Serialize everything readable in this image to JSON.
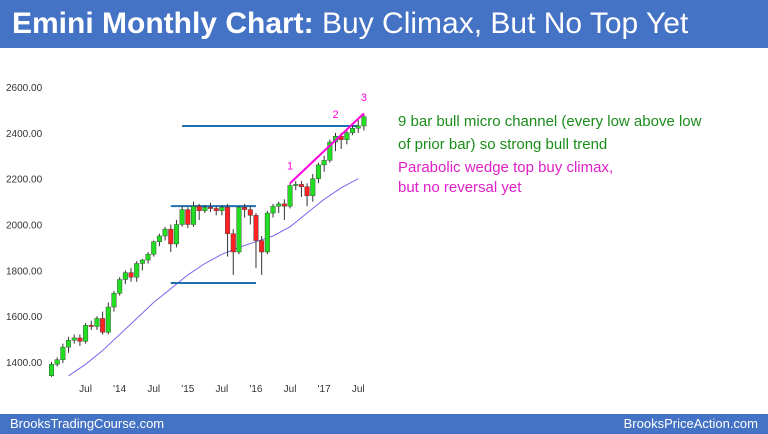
{
  "header": {
    "title_bold": "Emini Monthly Chart:",
    "title_rest": "Buy Climax, But No Top Yet"
  },
  "notes": {
    "line1": "9 bar bull micro channel (every low above low",
    "line2": "of prior bar) so strong bull trend",
    "line3": "Parabolic wedge top buy climax,",
    "line4": "but no reversal yet"
  },
  "footer": {
    "left": "BrooksTradingCourse.com",
    "right": "BrooksPriceAction.com"
  },
  "colors": {
    "header_bg": "#4472c4",
    "bull": "#22dd22",
    "bear": "#ff2222",
    "wick": "#333333",
    "ma": "#7b68ee",
    "range_lines": "#1f6fb0",
    "wedge": "#ff00dd",
    "green_text": "#1a8c1a",
    "magenta_text": "#e020c8"
  },
  "chart_data": {
    "type": "candlestick",
    "ylim": [
      1330,
      2650
    ],
    "y_ticks": [
      1400,
      1600,
      1800,
      2000,
      2200,
      2400,
      2600
    ],
    "y_tick_labels": [
      "1400.00",
      "1600.00",
      "1800.00",
      "2000.00",
      "2200.00",
      "2400.00",
      "2600.00"
    ],
    "x_tick_labels": [
      {
        "label": "Jul",
        "index": 6
      },
      {
        "label": "'14",
        "index": 12
      },
      {
        "label": "Jul",
        "index": 18
      },
      {
        "label": "'15",
        "index": 24
      },
      {
        "label": "Jul",
        "index": 30
      },
      {
        "label": "'16",
        "index": 36
      },
      {
        "label": "Jul",
        "index": 42
      },
      {
        "label": "'17",
        "index": 48
      },
      {
        "label": "Jul",
        "index": 54
      }
    ],
    "candles": [
      {
        "o": 1340,
        "h": 1400,
        "l": 1335,
        "c": 1390
      },
      {
        "o": 1390,
        "h": 1420,
        "l": 1380,
        "c": 1410
      },
      {
        "o": 1410,
        "h": 1480,
        "l": 1395,
        "c": 1465
      },
      {
        "o": 1465,
        "h": 1510,
        "l": 1440,
        "c": 1495
      },
      {
        "o": 1495,
        "h": 1520,
        "l": 1480,
        "c": 1505
      },
      {
        "o": 1505,
        "h": 1520,
        "l": 1470,
        "c": 1490
      },
      {
        "o": 1490,
        "h": 1570,
        "l": 1480,
        "c": 1560
      },
      {
        "o": 1560,
        "h": 1580,
        "l": 1540,
        "c": 1555
      },
      {
        "o": 1555,
        "h": 1600,
        "l": 1540,
        "c": 1590
      },
      {
        "o": 1590,
        "h": 1620,
        "l": 1520,
        "c": 1530
      },
      {
        "o": 1530,
        "h": 1660,
        "l": 1520,
        "c": 1640
      },
      {
        "o": 1640,
        "h": 1710,
        "l": 1620,
        "c": 1700
      },
      {
        "o": 1700,
        "h": 1770,
        "l": 1690,
        "c": 1760
      },
      {
        "o": 1760,
        "h": 1800,
        "l": 1740,
        "c": 1790
      },
      {
        "o": 1790,
        "h": 1810,
        "l": 1750,
        "c": 1770
      },
      {
        "o": 1770,
        "h": 1840,
        "l": 1750,
        "c": 1830
      },
      {
        "o": 1830,
        "h": 1850,
        "l": 1800,
        "c": 1845
      },
      {
        "o": 1845,
        "h": 1880,
        "l": 1830,
        "c": 1870
      },
      {
        "o": 1870,
        "h": 1930,
        "l": 1860,
        "c": 1925
      },
      {
        "o": 1925,
        "h": 1960,
        "l": 1905,
        "c": 1950
      },
      {
        "o": 1950,
        "h": 1990,
        "l": 1930,
        "c": 1980
      },
      {
        "o": 1980,
        "h": 2000,
        "l": 1880,
        "c": 1915
      },
      {
        "o": 1915,
        "h": 2020,
        "l": 1900,
        "c": 2000
      },
      {
        "o": 2000,
        "h": 2080,
        "l": 1990,
        "c": 2065
      },
      {
        "o": 2065,
        "h": 2075,
        "l": 1985,
        "c": 2000
      },
      {
        "o": 2000,
        "h": 2100,
        "l": 1990,
        "c": 2080
      },
      {
        "o": 2080,
        "h": 2090,
        "l": 2020,
        "c": 2060
      },
      {
        "o": 2060,
        "h": 2085,
        "l": 2050,
        "c": 2075
      },
      {
        "o": 2075,
        "h": 2095,
        "l": 2055,
        "c": 2070
      },
      {
        "o": 2070,
        "h": 2080,
        "l": 2040,
        "c": 2060
      },
      {
        "o": 2060,
        "h": 2085,
        "l": 2040,
        "c": 2075
      },
      {
        "o": 2075,
        "h": 2090,
        "l": 1860,
        "c": 1960
      },
      {
        "o": 1960,
        "h": 1980,
        "l": 1780,
        "c": 1880
      },
      {
        "o": 1880,
        "h": 2080,
        "l": 1870,
        "c": 2075
      },
      {
        "o": 2075,
        "h": 2090,
        "l": 2030,
        "c": 2065
      },
      {
        "o": 2065,
        "h": 2080,
        "l": 2000,
        "c": 2040
      },
      {
        "o": 2040,
        "h": 2050,
        "l": 1810,
        "c": 1930
      },
      {
        "o": 1930,
        "h": 1950,
        "l": 1780,
        "c": 1880
      },
      {
        "o": 1880,
        "h": 2060,
        "l": 1870,
        "c": 2050
      },
      {
        "o": 2050,
        "h": 2090,
        "l": 2030,
        "c": 2080
      },
      {
        "o": 2080,
        "h": 2100,
        "l": 2050,
        "c": 2090
      },
      {
        "o": 2090,
        "h": 2110,
        "l": 2020,
        "c": 2080
      },
      {
        "o": 2080,
        "h": 2180,
        "l": 2070,
        "c": 2170
      },
      {
        "o": 2170,
        "h": 2190,
        "l": 2150,
        "c": 2175
      },
      {
        "o": 2175,
        "h": 2190,
        "l": 2120,
        "c": 2165
      },
      {
        "o": 2165,
        "h": 2180,
        "l": 2080,
        "c": 2125
      },
      {
        "o": 2125,
        "h": 2220,
        "l": 2100,
        "c": 2200
      },
      {
        "o": 2200,
        "h": 2270,
        "l": 2180,
        "c": 2260
      },
      {
        "o": 2260,
        "h": 2300,
        "l": 2230,
        "c": 2280
      },
      {
        "o": 2280,
        "h": 2370,
        "l": 2270,
        "c": 2360
      },
      {
        "o": 2360,
        "h": 2400,
        "l": 2320,
        "c": 2385
      },
      {
        "o": 2385,
        "h": 2400,
        "l": 2330,
        "c": 2370
      },
      {
        "o": 2370,
        "h": 2420,
        "l": 2350,
        "c": 2400
      },
      {
        "o": 2400,
        "h": 2440,
        "l": 2390,
        "c": 2420
      },
      {
        "o": 2420,
        "h": 2460,
        "l": 2400,
        "c": 2430
      },
      {
        "o": 2430,
        "h": 2480,
        "l": 2410,
        "c": 2470
      }
    ],
    "moving_average": [
      [
        3,
        1340
      ],
      [
        6,
        1390
      ],
      [
        9,
        1450
      ],
      [
        12,
        1520
      ],
      [
        15,
        1590
      ],
      [
        18,
        1660
      ],
      [
        21,
        1720
      ],
      [
        24,
        1780
      ],
      [
        27,
        1830
      ],
      [
        30,
        1870
      ],
      [
        33,
        1900
      ],
      [
        36,
        1925
      ],
      [
        39,
        1950
      ],
      [
        42,
        1990
      ],
      [
        45,
        2050
      ],
      [
        48,
        2110
      ],
      [
        51,
        2160
      ],
      [
        54,
        2200
      ]
    ],
    "horizontal_lines": [
      {
        "y": 2430,
        "from": 23,
        "to": 54
      },
      {
        "y": 2080,
        "from": 21,
        "to": 36
      },
      {
        "y": 1745,
        "from": 21,
        "to": 36
      }
    ],
    "wedge_line": {
      "from": [
        42,
        2180
      ],
      "to": [
        55,
        2485
      ]
    },
    "wedge_labels": [
      {
        "label": "1",
        "index": 42,
        "y": 2240
      },
      {
        "label": "2",
        "index": 50,
        "y": 2465
      },
      {
        "label": "3",
        "index": 55,
        "y": 2540
      }
    ]
  }
}
